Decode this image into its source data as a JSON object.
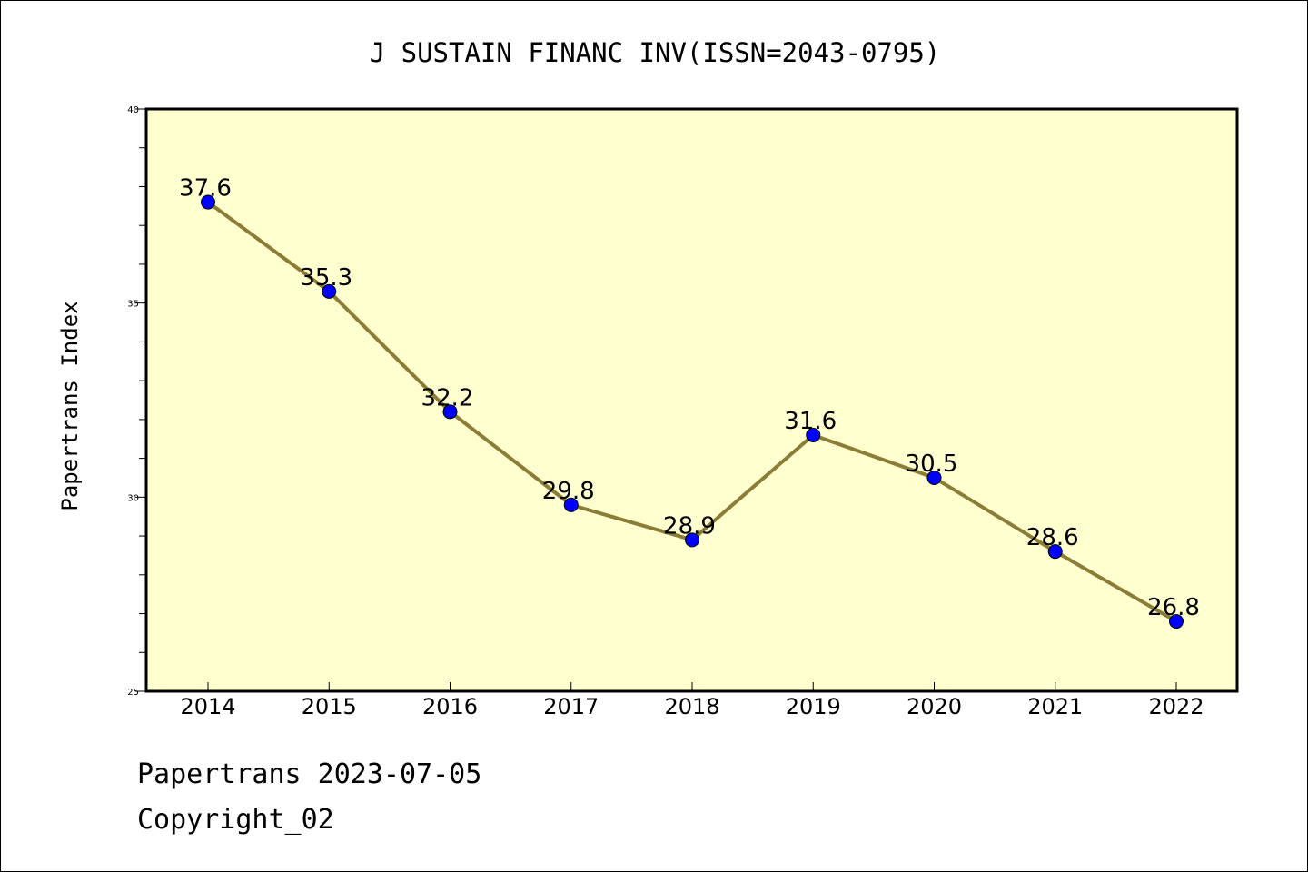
{
  "chart_data": {
    "type": "line",
    "title": "J SUSTAIN FINANC INV(ISSN=2043-0795)",
    "xlabel": "",
    "ylabel": "Papertrans Index",
    "categories": [
      "2014",
      "2015",
      "2016",
      "2017",
      "2018",
      "2019",
      "2020",
      "2021",
      "2022"
    ],
    "series": [
      {
        "values": [
          37.6,
          35.3,
          32.2,
          29.8,
          28.9,
          31.6,
          30.5,
          28.6,
          26.8
        ],
        "data_labels": [
          "37.6",
          "35.3",
          "32.2",
          "29.8",
          "28.9",
          "31.6",
          "30.5",
          "28.6",
          "26.8"
        ]
      }
    ],
    "ylim": [
      25,
      40
    ],
    "yticks": [
      25,
      30,
      35,
      40
    ],
    "ytick_labels": [
      "25",
      "30",
      "35",
      "40"
    ],
    "grid": false,
    "colors": {
      "plot_background": "#ffffd0",
      "line": "#8b7d35",
      "marker": "#0000ff"
    }
  },
  "footer": {
    "date_line": "Papertrans 2023-07-05",
    "copyright": "Copyright_02"
  }
}
